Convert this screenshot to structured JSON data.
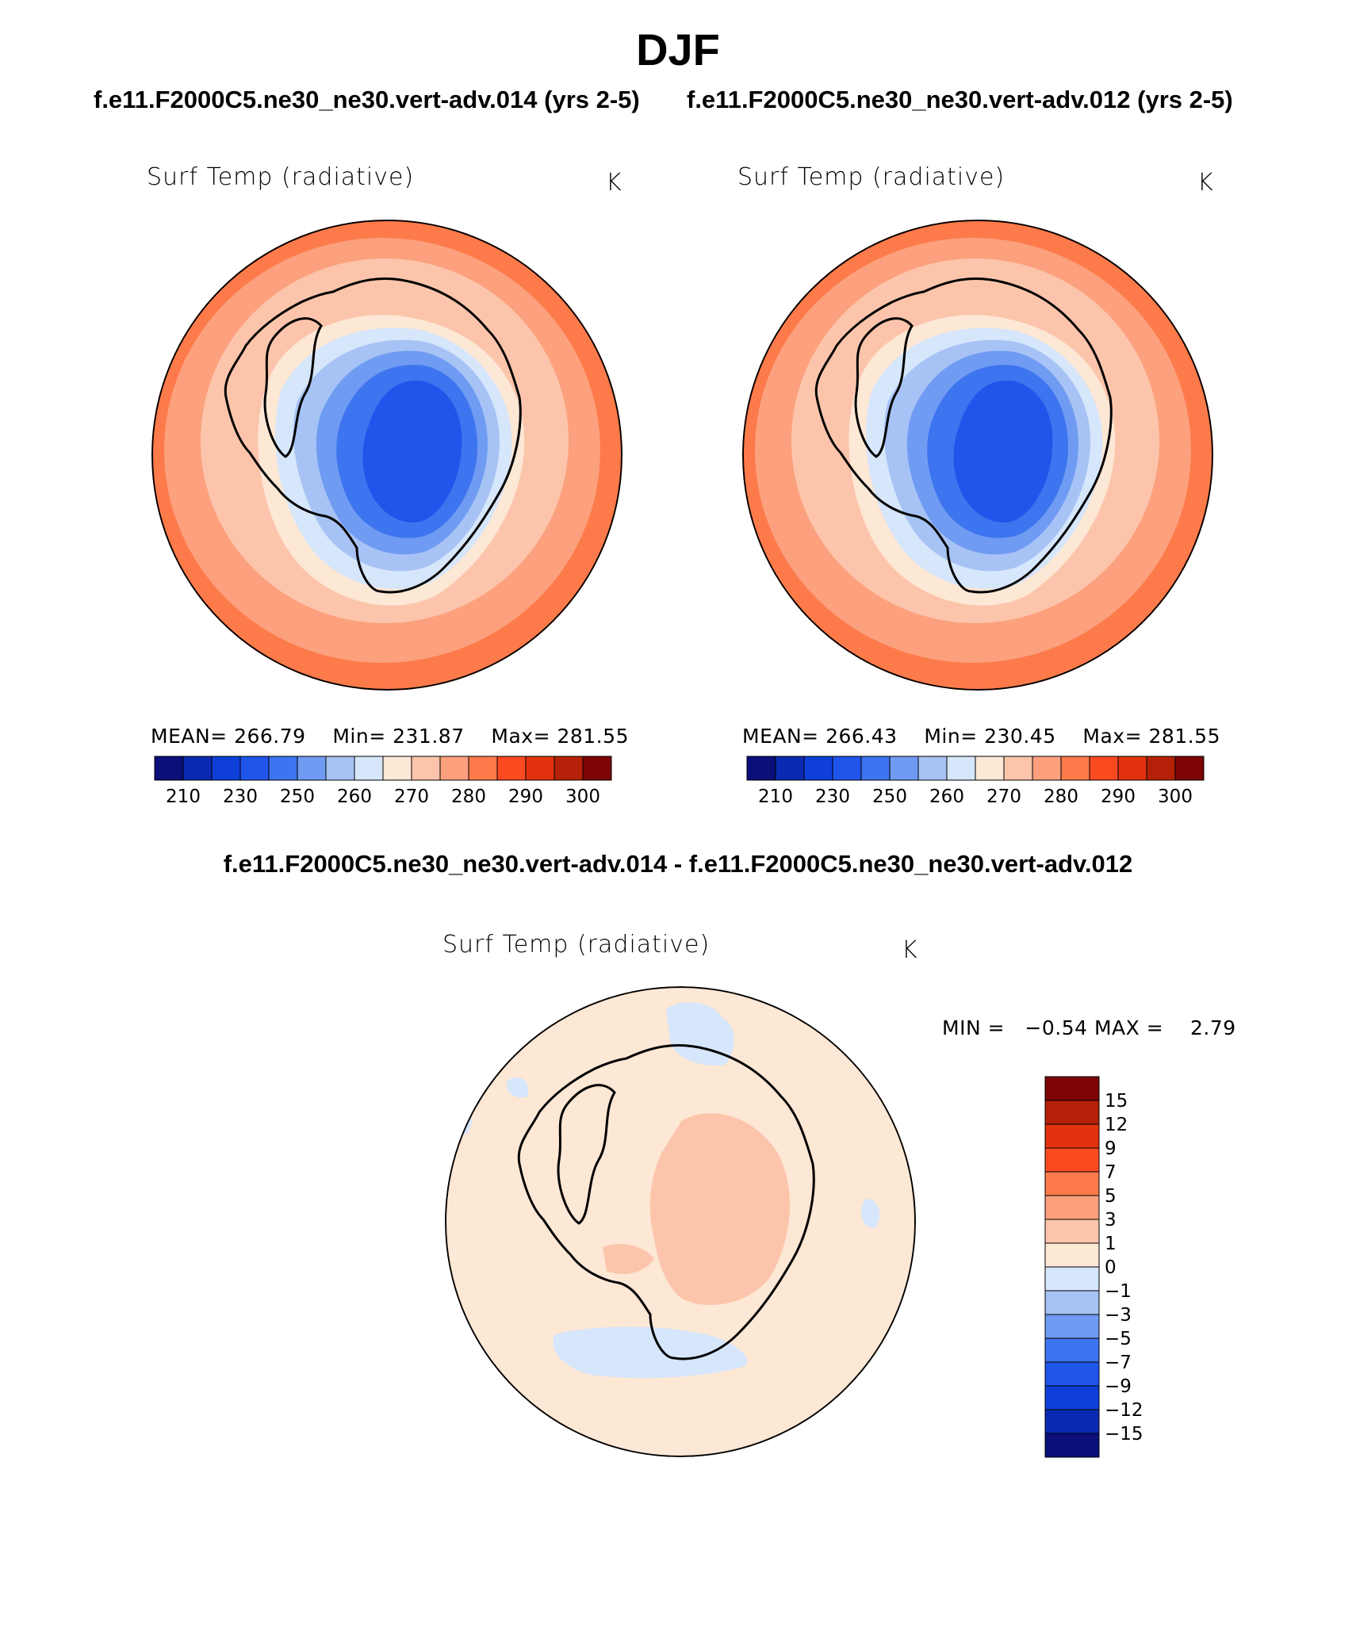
{
  "title": "DJF",
  "panels": [
    {
      "case_title": "f.e11.F2000C5.ne30_ne30.vert-adv.014 (yrs 2-5)",
      "variable": "Surf Temp (radiative)",
      "units": "K",
      "stats": {
        "mean_label": "MEAN=",
        "mean": "266.79",
        "min_label": "Min=",
        "min": "231.87",
        "max_label": "Max=",
        "max": "281.55"
      }
    },
    {
      "case_title": "f.e11.F2000C5.ne30_ne30.vert-adv.012 (yrs 2-5)",
      "variable": "Surf Temp (radiative)",
      "units": "K",
      "stats": {
        "mean_label": "MEAN=",
        "mean": "266.43",
        "min_label": "Min=",
        "min": "230.45",
        "max_label": "Max=",
        "max": "281.55"
      }
    }
  ],
  "abs_colorbar": {
    "colors": [
      "#0a0f7a",
      "#0b2ab4",
      "#0e3fd8",
      "#1f55ea",
      "#3d74ef",
      "#6f9bf2",
      "#a7c3f5",
      "#d6e6fb",
      "#fde7d5",
      "#fcc5ab",
      "#fca07d",
      "#fd7a4a",
      "#fb4a1f",
      "#e2330e",
      "#b52108",
      "#7c0404"
    ],
    "tick_labels": [
      "210",
      "230",
      "250",
      "260",
      "270",
      "280",
      "290",
      "300"
    ]
  },
  "difference": {
    "title": "f.e11.F2000C5.ne30_ne30.vert-adv.014 - f.e11.F2000C5.ne30_ne30.vert-adv.012",
    "variable": "Surf Temp (radiative)",
    "units": "K",
    "min_label": "MIN =",
    "min": "−0.54",
    "max_label": "MAX =",
    "max": "2.79",
    "colorbar": {
      "colors": [
        "#7c0404",
        "#b52108",
        "#e2330e",
        "#fb4a1f",
        "#fd7a4a",
        "#fca07d",
        "#fcc5ab",
        "#fde7d5",
        "#d6e6fb",
        "#a7c3f5",
        "#6f9bf2",
        "#3d74ef",
        "#1f55ea",
        "#0e3fd8",
        "#0b2ab4",
        "#0a0f7a"
      ],
      "tick_labels": [
        "15",
        "12",
        "9",
        "7",
        "5",
        "3",
        "1",
        "0",
        "−1",
        "−3",
        "−5",
        "−7",
        "−9",
        "−12",
        "−15"
      ]
    }
  }
}
